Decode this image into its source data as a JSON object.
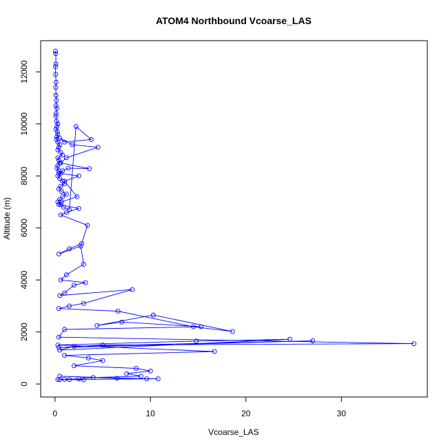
{
  "chart_data": {
    "type": "line",
    "title": "ATOM4 Northbound Vcoarse_LAS",
    "xlabel": "Vcoarse_LAS",
    "ylabel": "Altitude (m)",
    "xlim": [
      -1.5,
      39.0
    ],
    "ylim": [
      -500,
      13200
    ],
    "xticks": [
      "0",
      "10",
      "20",
      "30"
    ],
    "yticks": [
      "0",
      "2000",
      "4000",
      "6000",
      "8000",
      "10000",
      "12000"
    ],
    "grid": false,
    "legend": "none",
    "series_color": "#0000ff",
    "series": [
      {
        "x": [
          0.05,
          0.08,
          0.1,
          0.05,
          0.07,
          0.12,
          0.08,
          0.1,
          0.15,
          0.1,
          0.2,
          0.12,
          0.1,
          0.15,
          0.3,
          0.2,
          0.1,
          0.25,
          0.3,
          0.2,
          0.15,
          0.3,
          0.5,
          0.4,
          0.3,
          0.6,
          0.8,
          0.3,
          0.4,
          0.5,
          0.3,
          0.2,
          0.4,
          0.6,
          0.3,
          0.5,
          0.8,
          1.0,
          0.6,
          0.4,
          0.7,
          1.2,
          0.8,
          0.5,
          0.3,
          0.6,
          0.9,
          1.5,
          2.2,
          3.8,
          1.0,
          0.5,
          1.8,
          4.5,
          1.2,
          0.6,
          3.6,
          1.4,
          0.8,
          0.4,
          2.5,
          1.0,
          2.3,
          0.7,
          0.4,
          2.5,
          1.2,
          0.6,
          3.4,
          2.8,
          1.5,
          0.4,
          2.7,
          3.0,
          1.2,
          0.6,
          3.2,
          2.0,
          1.0,
          0.5,
          8.1,
          3.0,
          1.5,
          0.4,
          6.6,
          14.5,
          18.6,
          10.3,
          4.4,
          7.0,
          15.3,
          1.0,
          0.4,
          37.6,
          5.0,
          0.4,
          27.0,
          2.0,
          0.5,
          24.6,
          14.8,
          0.3,
          16.7,
          1.0,
          3.5,
          5.0,
          2.0,
          8.5,
          10.0,
          7.5,
          9.0,
          4.0,
          2.5,
          1.0,
          0.5,
          3.0,
          1.5,
          10.8,
          6.5,
          0.5,
          9.6,
          0.3
        ],
        "y": [
          12800,
          12700,
          12300,
          12200,
          11900,
          11600,
          11400,
          11100,
          10900,
          10700,
          10600,
          10400,
          10300,
          10100,
          10000,
          9900,
          9800,
          9700,
          9600,
          9500,
          9400,
          9300,
          9200,
          9100,
          9000,
          8900,
          8800,
          8700,
          8600,
          8500,
          8400,
          8300,
          8200,
          8100,
          8000,
          7900,
          7800,
          7700,
          7600,
          7500,
          7400,
          7300,
          7200,
          7100,
          7000,
          6900,
          6800,
          6700,
          9900,
          9400,
          9300,
          9450,
          9200,
          9100,
          8700,
          8500,
          8280,
          8300,
          8200,
          8100,
          8000,
          7800,
          7200,
          7000,
          6900,
          6750,
          6600,
          6500,
          6100,
          5400,
          5200,
          5000,
          5300,
          4600,
          4200,
          4000,
          3900,
          3800,
          3500,
          3400,
          3630,
          3100,
          3000,
          2900,
          2800,
          2200,
          2020,
          2650,
          2250,
          2380,
          2200,
          2100,
          1800,
          1550,
          1500,
          1400,
          1660,
          1450,
          1300,
          1720,
          1650,
          1500,
          1250,
          1100,
          1000,
          900,
          700,
          600,
          500,
          400,
          300,
          250,
          200,
          180,
          170,
          160,
          170,
          200,
          220,
          300,
          200,
          170
        ]
      }
    ]
  }
}
